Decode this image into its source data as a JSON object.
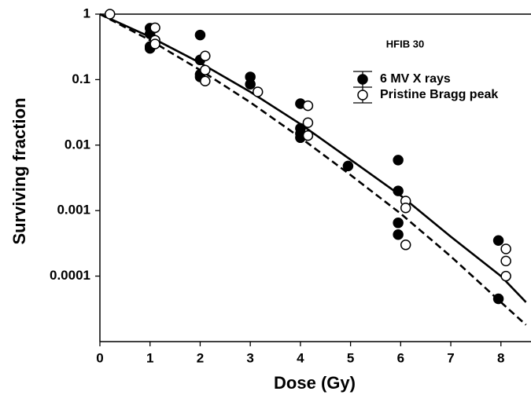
{
  "chart_data": {
    "type": "scatter",
    "ylog": true,
    "annotation": "HFIB 30",
    "xlabel": "Dose (Gy)",
    "ylabel": "Surviving fraction",
    "xlim": [
      0,
      8.6
    ],
    "ylim": [
      1e-05,
      1
    ],
    "xticks": [
      0,
      1,
      2,
      3,
      4,
      5,
      6,
      7,
      8
    ],
    "yticks": [
      1,
      0.1,
      0.01,
      0.001,
      0.0001
    ],
    "legend": "upper right",
    "series": [
      {
        "name": "6 MV X rays",
        "marker": "filled",
        "color": "#000000",
        "x": [
          1,
          1,
          1,
          1,
          2,
          2,
          2,
          2,
          3,
          3,
          4,
          4,
          4,
          4,
          4.95,
          5.95,
          5.95,
          5.95,
          5.95,
          7.95,
          7.95
        ],
        "values": [
          0.61,
          0.5,
          0.32,
          0.3,
          0.48,
          0.2,
          0.12,
          0.11,
          0.11,
          0.085,
          0.043,
          0.018,
          0.015,
          0.013,
          0.0048,
          0.0059,
          0.002,
          0.00065,
          0.00043,
          0.00035,
          4.5e-05
        ]
      },
      {
        "name": "Pristine Bragg peak",
        "marker": "open",
        "color": "#000000",
        "x": [
          0.2,
          1.1,
          1.1,
          1.1,
          2.1,
          2.1,
          2.1,
          3.15,
          4.15,
          4.15,
          4.15,
          6.1,
          6.1,
          6.1,
          8.1,
          8.1,
          8.1
        ],
        "values": [
          1,
          0.62,
          0.4,
          0.35,
          0.23,
          0.14,
          0.095,
          0.065,
          0.04,
          0.022,
          0.014,
          0.0014,
          0.0011,
          0.0003,
          0.00026,
          0.00017,
          0.0001
        ]
      }
    ],
    "curves": [
      {
        "style": "solid",
        "color": "#000000",
        "x": [
          0,
          1,
          2,
          3,
          4,
          5,
          6,
          7,
          8,
          8.5
        ],
        "values": [
          1,
          0.45,
          0.18,
          0.065,
          0.021,
          0.006,
          0.0017,
          0.0004,
          0.0001,
          4e-05
        ]
      },
      {
        "style": "dashed",
        "color": "#000000",
        "x": [
          0,
          1,
          2,
          3,
          4,
          5,
          6,
          7,
          8,
          8.5
        ],
        "values": [
          1,
          0.4,
          0.14,
          0.045,
          0.013,
          0.0035,
          0.0009,
          0.0002,
          4e-05,
          1.8e-05
        ]
      }
    ]
  }
}
